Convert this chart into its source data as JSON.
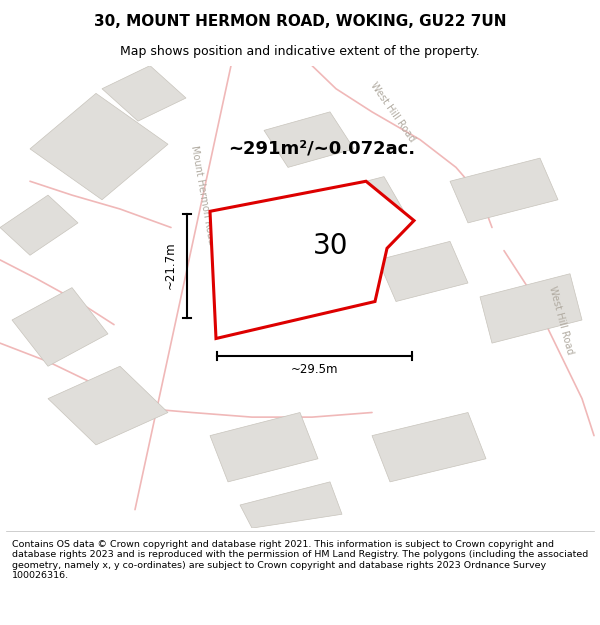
{
  "title": "30, MOUNT HERMON ROAD, WOKING, GU22 7UN",
  "subtitle": "Map shows position and indicative extent of the property.",
  "area_label": "~291m²/~0.072ac.",
  "number_label": "30",
  "dim_width": "~29.5m",
  "dim_height": "~21.7m",
  "footer": "Contains OS data © Crown copyright and database right 2021. This information is subject to Crown copyright and database rights 2023 and is reproduced with the permission of HM Land Registry. The polygons (including the associated geometry, namely x, y co-ordinates) are subject to Crown copyright and database rights 2023 Ordnance Survey 100026316.",
  "bg_color": "#ffffff",
  "map_bg": "#f7f6f4",
  "building_color": "#e0deda",
  "building_edge": "#c8c4bc",
  "road_line_color": "#f0b8b8",
  "red_polygon_color": "#dd0000",
  "road_label_color": "#b0aaa0",
  "plot_xlim": [
    0,
    10
  ],
  "plot_ylim": [
    0,
    10
  ],
  "title_fontsize": 11,
  "subtitle_fontsize": 9,
  "footer_fontsize": 6.8
}
